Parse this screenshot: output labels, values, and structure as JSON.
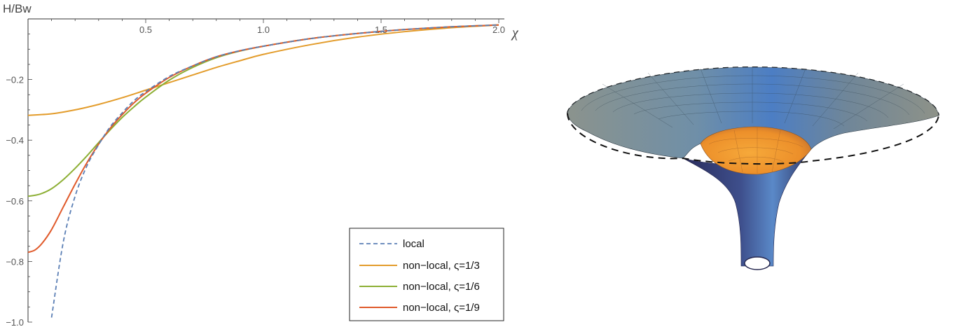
{
  "chart_data": {
    "type": "line",
    "xlabel": "χ",
    "ylabel": "H/Bw",
    "xlim": [
      0,
      2.0
    ],
    "ylim": [
      -1.0,
      0
    ],
    "x_ticks": [
      "0.5",
      "1.0",
      "1.5",
      "2.0"
    ],
    "y_ticks": [
      "-0.2",
      "-0.4",
      "-0.6",
      "-0.8",
      "-1.0"
    ],
    "legend_position": "bottom-right",
    "series": [
      {
        "name": "local",
        "style": "dashed",
        "color": "#5b7fb5",
        "x": [
          0.1,
          0.15,
          0.2,
          0.25,
          0.3,
          0.35,
          0.4,
          0.45,
          0.5,
          0.6,
          0.7,
          0.8,
          0.9,
          1.0,
          1.2,
          1.4,
          1.6,
          1.8,
          2.0
        ],
        "y": [
          -0.985,
          -0.735,
          -0.585,
          -0.485,
          -0.415,
          -0.355,
          -0.31,
          -0.27,
          -0.24,
          -0.19,
          -0.155,
          -0.125,
          -0.105,
          -0.09,
          -0.065,
          -0.048,
          -0.035,
          -0.026,
          -0.02
        ]
      },
      {
        "name": "non-local, ς=1/3",
        "style": "solid",
        "color": "#e39c2b",
        "x": [
          0,
          0.1,
          0.2,
          0.3,
          0.4,
          0.5,
          0.6,
          0.7,
          0.8,
          0.9,
          1.0,
          1.2,
          1.4,
          1.6,
          1.8,
          2.0
        ],
        "y": [
          -0.318,
          -0.313,
          -0.3,
          -0.282,
          -0.26,
          -0.235,
          -0.21,
          -0.185,
          -0.16,
          -0.138,
          -0.117,
          -0.085,
          -0.06,
          -0.042,
          -0.029,
          -0.02
        ]
      },
      {
        "name": "non-local, ς=1/6",
        "style": "solid",
        "color": "#8daf35",
        "x": [
          0,
          0.05,
          0.1,
          0.15,
          0.2,
          0.25,
          0.3,
          0.35,
          0.4,
          0.45,
          0.5,
          0.6,
          0.7,
          0.8,
          0.9,
          1.0,
          1.2,
          1.4,
          1.6,
          1.8,
          2.0
        ],
        "y": [
          -0.585,
          -0.578,
          -0.56,
          -0.53,
          -0.493,
          -0.452,
          -0.408,
          -0.365,
          -0.325,
          -0.29,
          -0.258,
          -0.202,
          -0.16,
          -0.128,
          -0.106,
          -0.09,
          -0.065,
          -0.048,
          -0.035,
          -0.026,
          -0.02
        ]
      },
      {
        "name": "non-local, ς=1/9",
        "style": "solid",
        "color": "#e05a2b",
        "x": [
          0,
          0.03,
          0.06,
          0.1,
          0.15,
          0.2,
          0.25,
          0.3,
          0.35,
          0.4,
          0.45,
          0.5,
          0.6,
          0.7,
          0.8,
          0.9,
          1.0,
          1.2,
          1.4,
          1.6,
          1.8,
          2.0
        ],
        "y": [
          -0.77,
          -0.762,
          -0.74,
          -0.695,
          -0.62,
          -0.545,
          -0.475,
          -0.413,
          -0.36,
          -0.316,
          -0.277,
          -0.245,
          -0.193,
          -0.155,
          -0.125,
          -0.105,
          -0.09,
          -0.065,
          -0.048,
          -0.035,
          -0.026,
          -0.02
        ]
      }
    ]
  },
  "colors": {
    "axis": "#333333",
    "surface_outer": "#7c8a86",
    "surface_mid": "#4e7fbf",
    "surface_core": "#f29a2e",
    "surface_shadow": "#2a2a5a",
    "dashed_rim": "#111111"
  }
}
